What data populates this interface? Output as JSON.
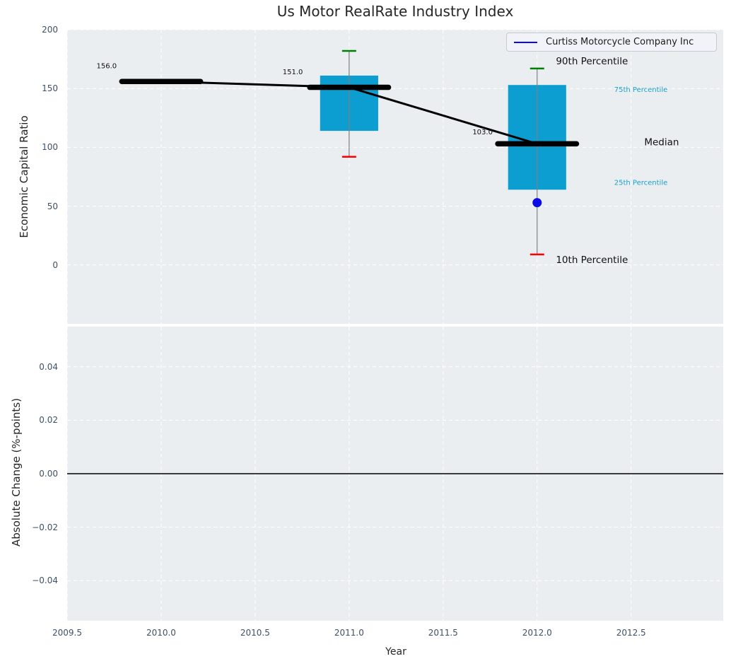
{
  "figure": {
    "title": "Us Motor RealRate Industry Index"
  },
  "colors": {
    "plot_bg": "#eaeef0",
    "grid": "#ffffff",
    "tick_label": "#3e5067",
    "box_fill": "#0d9ed1",
    "median": "#000000",
    "whisker": "#7f7f7f",
    "p90_cap": "#008000",
    "p10_cap": "#ff0000",
    "company": "#0b0be6",
    "percentile_label_cyan": "#1b9fc9",
    "annotation_text": "#111111",
    "zero_line": "#000000"
  },
  "chart_data": [
    {
      "type": "boxplot",
      "title": "Us Motor RealRate Industry Index",
      "ylabel": "Economic Capital Ratio",
      "legend_label": "Curtiss Motorcycle Company Inc",
      "legend_position": "upper right",
      "grid": true,
      "ylim": [
        -50,
        200
      ],
      "xlim": [
        2009.5,
        2012.99
      ],
      "yticks": [
        0,
        50,
        100,
        150,
        200
      ],
      "ytick_labels": [
        "0",
        "50",
        "100",
        "150",
        "200"
      ],
      "xticks": [
        2009.5,
        2010.0,
        2010.5,
        2011.0,
        2011.5,
        2012.0,
        2012.5
      ],
      "xtick_labels": [
        "2009.5",
        "2010.0",
        "2010.5",
        "2011.0",
        "2011.5",
        "2012.0",
        "2012.5"
      ],
      "boxes": [
        {
          "year": 2010,
          "median": 156,
          "q25": null,
          "q75": null,
          "p10": null,
          "p90": null,
          "value_label": "156.0"
        },
        {
          "year": 2011,
          "median": 151,
          "q25": 114,
          "q75": 161,
          "p10": 92,
          "p90": 182,
          "value_label": "151.0"
        },
        {
          "year": 2012,
          "median": 103,
          "q25": 64,
          "q75": 153,
          "p10": 9,
          "p90": 167,
          "value_label": "103.0"
        }
      ],
      "median_line": {
        "x": [
          2010,
          2011,
          2012
        ],
        "y": [
          156,
          151,
          103
        ]
      },
      "company_point": {
        "name": "Curtiss Motorcycle Company Inc",
        "x": 2012,
        "y": 53
      },
      "annotations": [
        {
          "text": "156.0",
          "x": 2009.71,
          "y": 169,
          "size": 10,
          "color": "#111111",
          "anchor": "middle"
        },
        {
          "text": "151.0",
          "x": 2010.7,
          "y": 164,
          "size": 10,
          "color": "#111111",
          "anchor": "middle"
        },
        {
          "text": "103.0",
          "x": 2011.71,
          "y": 113,
          "size": 10,
          "color": "#111111",
          "anchor": "middle"
        },
        {
          "text": "90th Percentile",
          "x": 2012.1,
          "y": 173,
          "size": 13.5,
          "color": "#111111",
          "anchor": "start"
        },
        {
          "text": "75th Percentile",
          "x": 2012.41,
          "y": 149,
          "size": 10,
          "color": "#1b9fc9",
          "anchor": "start"
        },
        {
          "text": "Median",
          "x": 2012.57,
          "y": 104,
          "size": 13.5,
          "color": "#111111",
          "anchor": "start"
        },
        {
          "text": "25th Percentile",
          "x": 2012.41,
          "y": 70,
          "size": 10,
          "color": "#1b9fc9",
          "anchor": "start"
        },
        {
          "text": "10th Percentile",
          "x": 2012.1,
          "y": 4,
          "size": 13.5,
          "color": "#111111",
          "anchor": "start"
        }
      ]
    },
    {
      "type": "line",
      "ylabel": "Absolute Change (%-points)",
      "xlabel": "Year",
      "grid": true,
      "ylim": [
        -0.055,
        0.055
      ],
      "xlim": [
        2009.5,
        2012.99
      ],
      "yticks": [
        0.04,
        0.02,
        0.0,
        -0.02,
        -0.04
      ],
      "ytick_labels": [
        "0.04",
        "0.02",
        "0.00",
        "−0.02",
        "−0.04"
      ],
      "xticks": [
        2009.5,
        2010.0,
        2010.5,
        2011.0,
        2011.5,
        2012.0,
        2012.5
      ],
      "xtick_labels": [
        "2009.5",
        "2010.0",
        "2010.5",
        "2011.0",
        "2011.5",
        "2012.0",
        "2012.5"
      ],
      "zero_line": 0.0,
      "series": []
    }
  ]
}
